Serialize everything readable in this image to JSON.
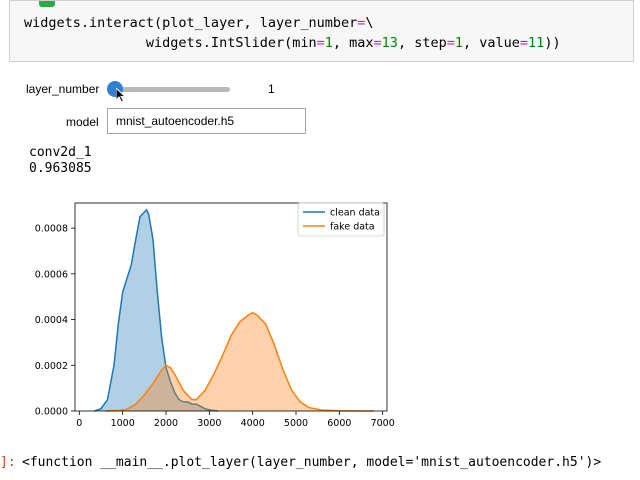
{
  "code": {
    "line1_prefix": "widgets.interact(plot_layer, layer_number",
    "line1_eq": "=",
    "line1_suffix": "\\",
    "line2_indent": "               widgets.IntSlider(min",
    "line2_eq1": "=",
    "line2_min": "1",
    "line2_a": ", max",
    "line2_eq2": "=",
    "line2_max": "13",
    "line2_b": ", step",
    "line2_eq3": "=",
    "line2_step": "1",
    "line2_c": ", value",
    "line2_eq4": "=",
    "line2_value": "11",
    "line2_end": "))"
  },
  "widgets": {
    "slider_label": "layer_number",
    "slider_value": "1",
    "slider_level_fraction": 0.0,
    "model_label": "model",
    "model_value": "mnist_autoencoder.h5"
  },
  "output": {
    "layer_name": "conv2d_1",
    "score": "0.963085",
    "prompt": "]:",
    "repr": "<function __main__.plot_layer(layer_number, model='mnist_autoencoder.h5')>"
  },
  "colors": {
    "clean": "#1f77b4",
    "fake": "#ff7f0e",
    "slider_handle": "#2f80d1",
    "prompt": "#d84315"
  },
  "chart_data": {
    "type": "area",
    "x_ticks": [
      "0",
      "1000",
      "2000",
      "3000",
      "4000",
      "5000",
      "6000",
      "7000"
    ],
    "y_ticks": [
      "0.0000",
      "0.0002",
      "0.0004",
      "0.0006",
      "0.0008"
    ],
    "xlim": [
      -100,
      7100
    ],
    "ylim": [
      0,
      0.00091
    ],
    "legend": "top-right",
    "series": [
      {
        "name": "clean data",
        "x": [
          350,
          500,
          650,
          800,
          900,
          1000,
          1100,
          1200,
          1300,
          1400,
          1500,
          1550,
          1600,
          1700,
          1800,
          1900,
          2000,
          2100,
          2200,
          2300,
          2400,
          2500,
          2600,
          2700,
          2800,
          2900,
          3000,
          3100,
          3200
        ],
        "y": [
          0,
          1e-05,
          5e-05,
          0.0002,
          0.00038,
          0.00052,
          0.00058,
          0.00064,
          0.00075,
          0.00085,
          0.00087,
          0.00088,
          0.00086,
          0.00075,
          0.00052,
          0.00032,
          0.00019,
          0.00013,
          8e-05,
          5e-05,
          4e-05,
          4e-05,
          3e-05,
          3e-05,
          2e-05,
          1e-05,
          5e-06,
          2e-06,
          0
        ]
      },
      {
        "name": "fake data",
        "x": [
          600,
          900,
          1100,
          1300,
          1500,
          1700,
          1900,
          2000,
          2100,
          2200,
          2400,
          2600,
          2700,
          2900,
          3100,
          3300,
          3500,
          3700,
          3900,
          4000,
          4100,
          4300,
          4500,
          4700,
          4900,
          5100,
          5300,
          5600,
          6000,
          6400,
          6800
        ],
        "y": [
          0,
          2e-06,
          8e-06,
          3e-05,
          7e-05,
          0.00012,
          0.00018,
          0.0002,
          0.00019,
          0.00016,
          9e-05,
          5e-05,
          5e-05,
          9e-05,
          0.00016,
          0.00024,
          0.00033,
          0.00039,
          0.00042,
          0.00043,
          0.00042,
          0.00038,
          0.00029,
          0.00018,
          9e-05,
          4e-05,
          1.5e-05,
          4e-06,
          1e-06,
          2e-07,
          0
        ]
      }
    ]
  }
}
